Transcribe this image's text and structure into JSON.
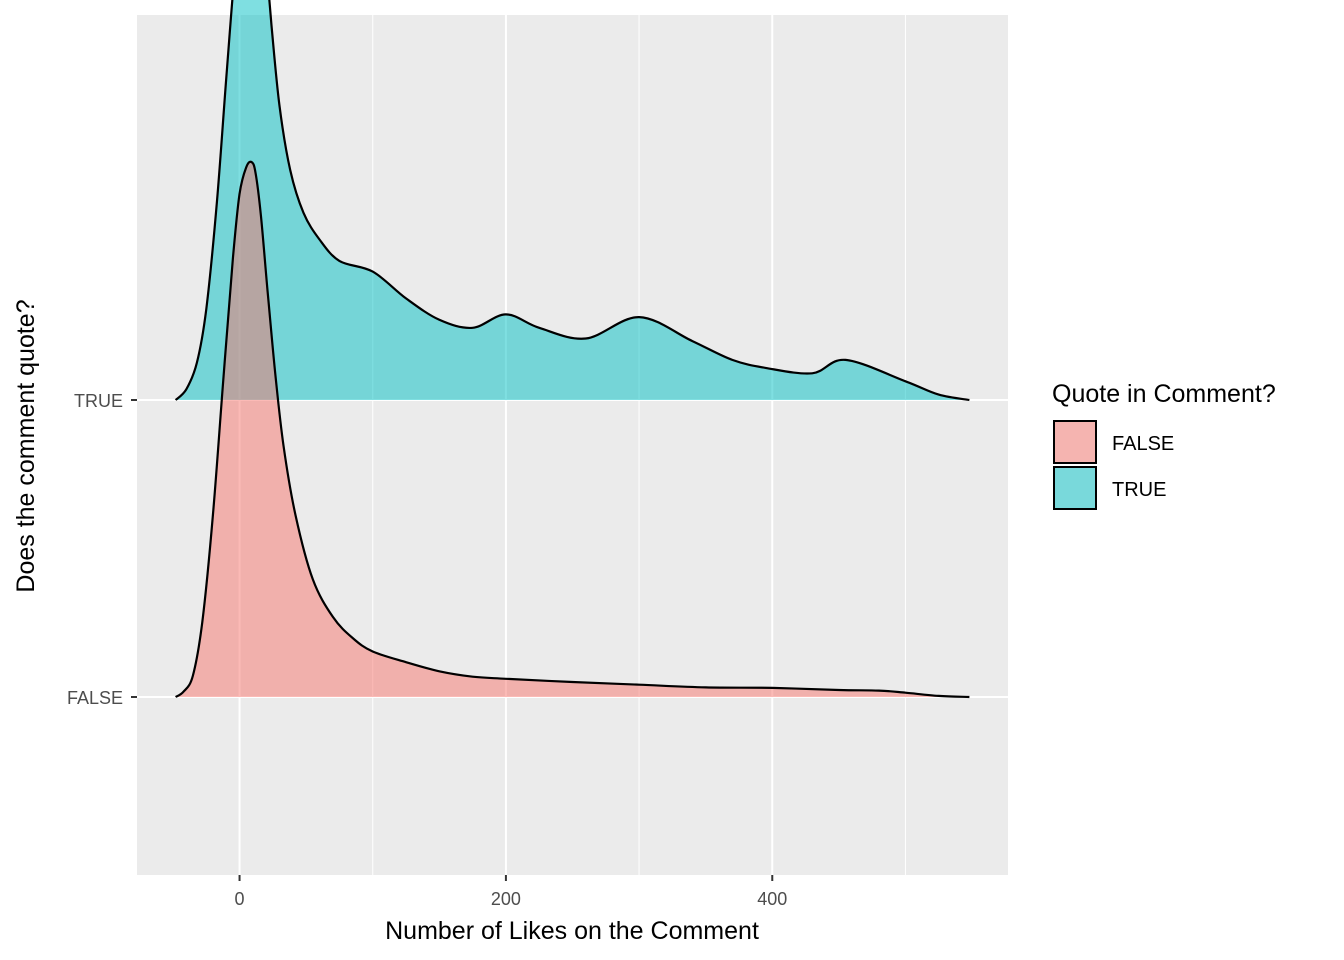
{
  "chart_data": {
    "type": "area",
    "subtype": "ridgeline-density",
    "xlabel": "Number of Likes on the Comment",
    "ylabel": "Does the comment quote?",
    "xlim": [
      -77,
      577
    ],
    "x_ticks": [
      0,
      200,
      400
    ],
    "x_minor_ticks": [
      100,
      300,
      500
    ],
    "categories": [
      "FALSE",
      "TRUE"
    ],
    "grid": true,
    "legend": {
      "title": "Quote in Comment?",
      "position": "right",
      "entries": [
        "FALSE",
        "TRUE"
      ]
    },
    "series": [
      {
        "name": "FALSE",
        "color": "#F8766D",
        "x": [
          -48,
          -42,
          -35,
          -28,
          -20,
          -12,
          -5,
          0,
          5,
          9,
          12,
          16,
          21,
          27,
          33,
          42,
          55,
          70,
          85,
          100,
          125,
          150,
          175,
          200,
          250,
          300,
          350,
          400,
          450,
          480,
          500,
          525,
          548
        ],
        "height": [
          0.0,
          0.01,
          0.04,
          0.14,
          0.34,
          0.6,
          0.82,
          0.94,
          0.99,
          1.0,
          0.98,
          0.9,
          0.76,
          0.6,
          0.47,
          0.34,
          0.22,
          0.15,
          0.11,
          0.085,
          0.065,
          0.048,
          0.038,
          0.034,
          0.028,
          0.023,
          0.018,
          0.017,
          0.013,
          0.012,
          0.008,
          0.002,
          0.0
        ]
      },
      {
        "name": "TRUE",
        "color": "#00BFC4",
        "x": [
          -48,
          -40,
          -32,
          -25,
          -17,
          -10,
          -3,
          3,
          8,
          12,
          15,
          19,
          24,
          30,
          38,
          48,
          60,
          75,
          100,
          125,
          150,
          175,
          200,
          225,
          260,
          300,
          340,
          370,
          395,
          430,
          455,
          500,
          525,
          548
        ],
        "height": [
          0.0,
          0.02,
          0.07,
          0.17,
          0.37,
          0.6,
          0.82,
          0.95,
          1.0,
          0.99,
          0.95,
          0.85,
          0.7,
          0.55,
          0.43,
          0.35,
          0.3,
          0.26,
          0.24,
          0.19,
          0.15,
          0.135,
          0.16,
          0.135,
          0.115,
          0.155,
          0.11,
          0.075,
          0.06,
          0.05,
          0.075,
          0.035,
          0.01,
          0.0
        ]
      }
    ]
  }
}
